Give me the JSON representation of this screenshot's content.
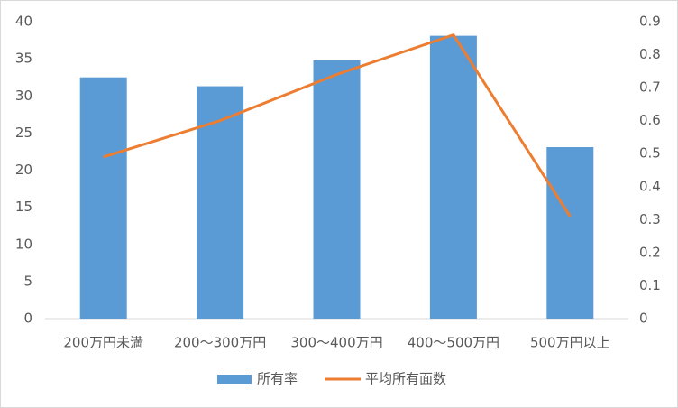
{
  "chart_data": {
    "type": "bar",
    "categories": [
      "200万円未満",
      "200～300万円",
      "300～400万円",
      "400～500万円",
      "500万円以上"
    ],
    "series": [
      {
        "name": "所有率",
        "type": "bar",
        "color": "#5b9bd5",
        "values": [
          32.5,
          31.3,
          34.8,
          38.1,
          23.1
        ]
      },
      {
        "name": "平均所有面数",
        "type": "line",
        "color": "#ed7d31",
        "axis": "y2",
        "values": [
          0.49,
          0.6,
          0.74,
          0.86,
          0.31
        ]
      }
    ],
    "ylim": [
      0,
      40
    ],
    "yticks": [
      0,
      5,
      10,
      15,
      20,
      25,
      30,
      35,
      40
    ],
    "y2lim": [
      0,
      0.9
    ],
    "y2ticks": [
      0,
      0.1,
      0.2,
      0.3,
      0.4,
      0.5,
      0.6,
      0.7,
      0.8,
      0.9
    ],
    "grid": false,
    "legend": "bottom"
  }
}
